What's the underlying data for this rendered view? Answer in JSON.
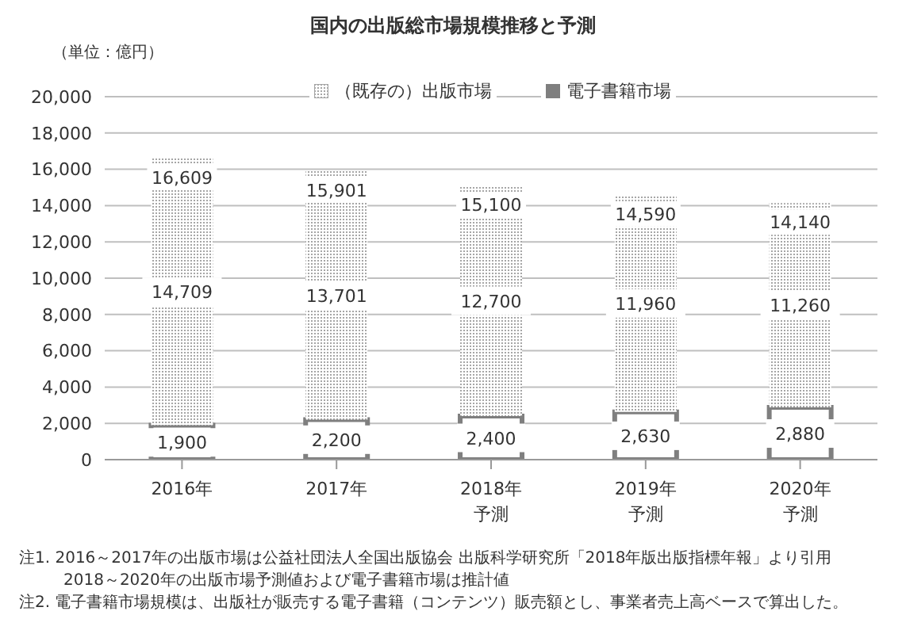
{
  "chart_data": {
    "type": "bar",
    "title": "国内の出版総市場規模推移と予測",
    "ylabel": "（単位：億円）",
    "categories": [
      "2016年",
      "2017年",
      "2018年予測",
      "2019年予測",
      "2020年予測"
    ],
    "series": [
      {
        "name": "電子書籍市場",
        "color": "#7f7f7f",
        "values": [
          1900,
          2200,
          2400,
          2630,
          2880
        ],
        "value_labels": [
          "1,900",
          "2,200",
          "2,400",
          "2,630",
          "2,880"
        ]
      },
      {
        "name": "（既存の）出版市場",
        "color": "#a6a6a6",
        "values": [
          14709,
          13701,
          12700,
          11960,
          11260
        ],
        "value_labels": [
          "14,709",
          "13,701",
          "12,700",
          "11,960",
          "11,260"
        ]
      }
    ],
    "stacked": true,
    "totals": [
      "16,609",
      "15,901",
      "15,100",
      "14,590",
      "14,140"
    ],
    "ylim": [
      0,
      20000
    ],
    "yticks": [
      {
        "value": 0,
        "label": "0"
      },
      {
        "value": 2000,
        "label": "2,000"
      },
      {
        "value": 4000,
        "label": "4,000"
      },
      {
        "value": 6000,
        "label": "6,000"
      },
      {
        "value": 8000,
        "label": "8,000"
      },
      {
        "value": 10000,
        "label": "10,000"
      },
      {
        "value": 12000,
        "label": "12,000"
      },
      {
        "value": 14000,
        "label": "14,000"
      },
      {
        "value": 16000,
        "label": "16,000"
      },
      {
        "value": 18000,
        "label": "18,000"
      },
      {
        "value": 20000,
        "label": "20,000"
      }
    ],
    "grid": "y",
    "legend": "top",
    "annotations": [
      "注1.  2016～2017年の出版市場は公益社団法人全国出版協会 出版科学研究所「2018年版出版指標年報」より引用",
      "2018～2020年の出版市場予測値および電子書籍市場は推計値",
      "注2.  電子書籍市場規模は、出版社が販売する電子書籍（コンテンツ）販売額とし、事業者売上高ベースで算出した。"
    ]
  }
}
